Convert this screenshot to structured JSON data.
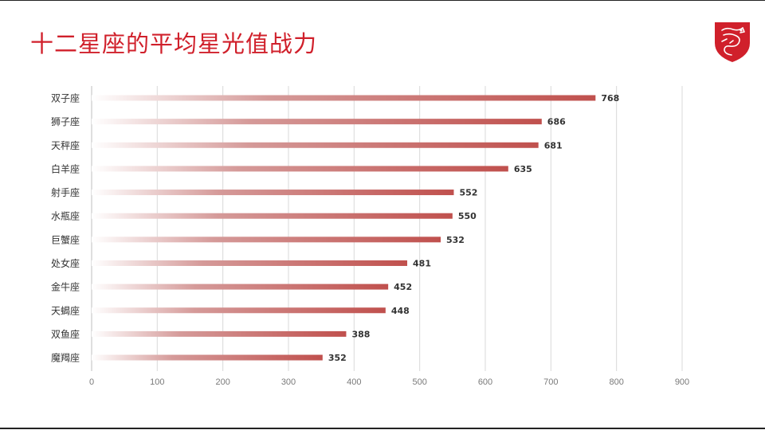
{
  "header": {
    "title": "十二星座的平均星光值战力"
  },
  "colors": {
    "brand": "#d0202b",
    "bar_end": "#c0504d",
    "bar_start": "#ffffff",
    "grid": "#d9d9d9"
  },
  "chart_data": {
    "type": "bar",
    "orientation": "horizontal",
    "title": "十二星座的平均星光值战力",
    "categories": [
      "双子座",
      "狮子座",
      "天秤座",
      "白羊座",
      "射手座",
      "水瓶座",
      "巨蟹座",
      "处女座",
      "金牛座",
      "天蝎座",
      "双鱼座",
      "魔羯座"
    ],
    "values": [
      768,
      686,
      681,
      635,
      552,
      550,
      532,
      481,
      452,
      448,
      388,
      352
    ],
    "xlim": [
      0,
      900
    ],
    "ticks": [
      0,
      100,
      200,
      300,
      400,
      500,
      600,
      700,
      800,
      900
    ],
    "grid": true,
    "legend": "none",
    "xlabel": "",
    "ylabel": ""
  }
}
